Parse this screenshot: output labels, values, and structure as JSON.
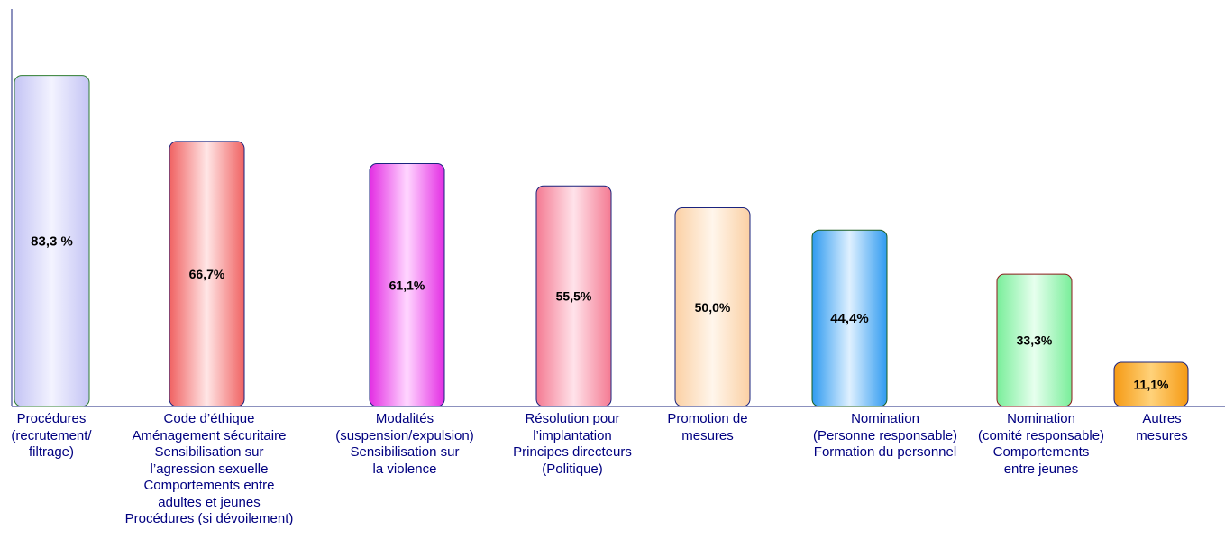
{
  "chart_data": {
    "type": "bar",
    "title": "",
    "xlabel": "",
    "ylabel": "",
    "ylim": [
      0,
      100
    ],
    "grid": false,
    "legend": "none",
    "categories": [
      [
        "Procédures",
        "(recrutement/",
        "filtrage)"
      ],
      [
        "Code d’éthique",
        "Aménagement sécuritaire",
        "Sensibilisation sur",
        "l’agression sexuelle",
        "Comportements entre",
        "adultes et jeunes",
        "Procédures (si dévoilement)"
      ],
      [
        "Modalités",
        "(suspension/expulsion)",
        "Sensibilisation sur",
        "la violence"
      ],
      [
        "Résolution pour",
        "l’implantation",
        "Principes directeurs",
        "(Politique)"
      ],
      [
        "Promotion de",
        "mesures"
      ],
      [
        "Nomination",
        "(Personne responsable)",
        "Formation du personnel"
      ],
      [
        "Nomination",
        "(comité responsable)",
        "Comportements",
        "entre jeunes"
      ],
      [
        "Autres",
        "mesures"
      ]
    ],
    "values": [
      83.3,
      66.7,
      61.1,
      55.5,
      50.0,
      44.4,
      33.3,
      11.1
    ],
    "value_labels": [
      "83,3 %",
      "66,7%",
      "61,1%",
      "55,5%",
      "50,0%",
      "44,4%",
      "33,3%",
      "11,1%"
    ],
    "colors": [
      {
        "edge": "#c4c4f4",
        "center": "#f3f3ff",
        "border": "#2e7d32"
      },
      {
        "edge": "#f06262",
        "center": "#ffe6e6",
        "border": "#1a237e"
      },
      {
        "edge": "#e32ee3",
        "center": "#ffd6ff",
        "border": "#1a237e"
      },
      {
        "edge": "#f47a92",
        "center": "#ffe3ea",
        "border": "#1a237e"
      },
      {
        "edge": "#fbd0a4",
        "center": "#fff6ec",
        "border": "#1a237e"
      },
      {
        "edge": "#2f9bf0",
        "center": "#dff0ff",
        "border": "#1b5e20"
      },
      {
        "edge": "#79ee9a",
        "center": "#e7ffee",
        "border": "#8b1a1a"
      },
      {
        "edge": "#f59a14",
        "center": "#ffd27a",
        "border": "#1a237e"
      }
    ],
    "label_color": "#000080"
  }
}
